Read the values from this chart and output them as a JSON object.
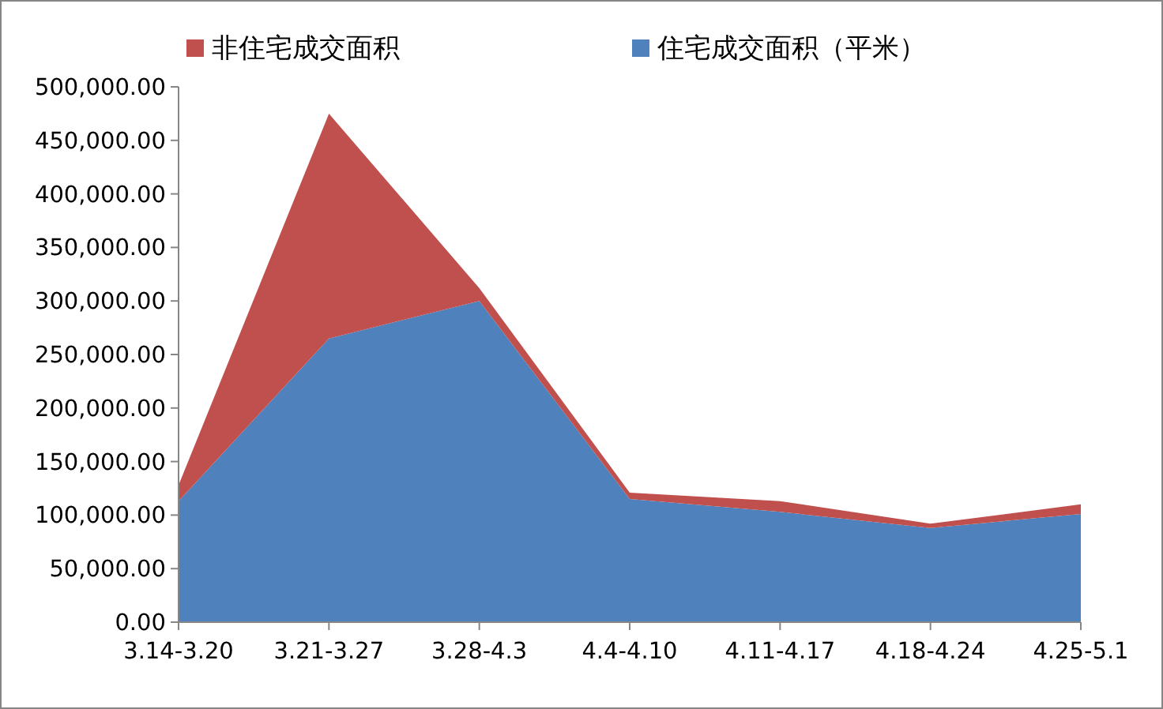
{
  "chart_data": {
    "type": "area",
    "stacked": true,
    "legend": "top",
    "categories": [
      "3.14-3.20",
      "3.21-3.27",
      "3.28-4.3",
      "4.4-4.10",
      "4.11-4.17",
      "4.18-4.24",
      "4.25-5.1"
    ],
    "series": [
      {
        "name": "住宅成交面积（平米）",
        "color": "#4f81bd",
        "values": [
          113000,
          265000,
          300000,
          115000,
          103000,
          88000,
          101000
        ]
      },
      {
        "name": "非住宅成交面积",
        "color": "#c0504d",
        "values": [
          15000,
          210000,
          12000,
          6000,
          10000,
          4000,
          9000
        ]
      }
    ],
    "ylim": [
      0,
      500000
    ],
    "yticks": [
      {
        "value": 0,
        "label": "0.00"
      },
      {
        "value": 50000,
        "label": "50,000.00"
      },
      {
        "value": 100000,
        "label": "100,000.00"
      },
      {
        "value": 150000,
        "label": "150,000.00"
      },
      {
        "value": 200000,
        "label": "200,000.00"
      },
      {
        "value": 250000,
        "label": "250,000.00"
      },
      {
        "value": 300000,
        "label": "300,000.00"
      },
      {
        "value": 350000,
        "label": "350,000.00"
      },
      {
        "value": 400000,
        "label": "400,000.00"
      },
      {
        "value": 450000,
        "label": "450,000.00"
      },
      {
        "value": 500000,
        "label": "500,000.00"
      }
    ]
  }
}
